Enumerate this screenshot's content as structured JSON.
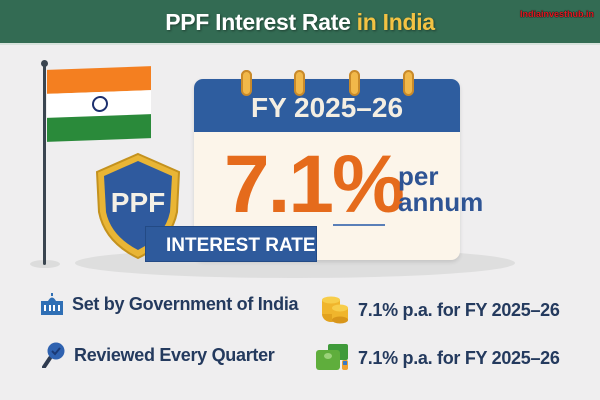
{
  "header": {
    "title_main": "PPF Interest Rate",
    "title_highlight": "in India",
    "watermark": "Indiainvesthub.in"
  },
  "calendar": {
    "fy": "FY 2025–26",
    "rate": "7.1%",
    "per": "per",
    "annum": "annum"
  },
  "shield": {
    "label": "PPF",
    "banner": "INTEREST RATE"
  },
  "features": [
    {
      "icon": "government-building-icon",
      "text": "Set by Government of India"
    },
    {
      "icon": "coins-icon",
      "text": "7.1% p.a. for FY 2025–26"
    },
    {
      "icon": "magnifier-check-icon",
      "text": "Reviewed Every Quarter"
    },
    {
      "icon": "cash-stack-icon",
      "text": "7.1% p.a. for FY 2025–26"
    }
  ],
  "colors": {
    "header": "#336b53",
    "highlight": "#f3c243",
    "rate": "#e56b1c",
    "blue": "#2e5d9f"
  }
}
